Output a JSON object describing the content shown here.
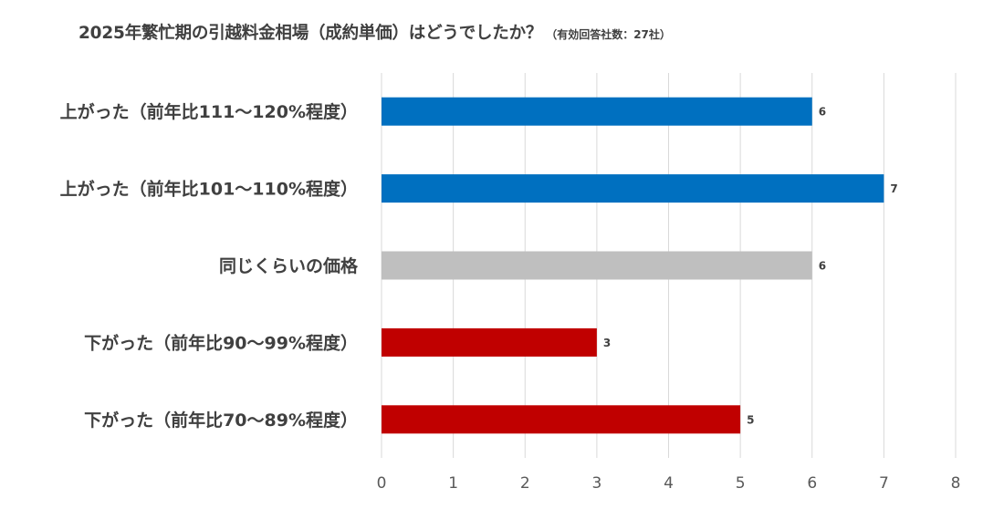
{
  "chart_data": {
    "type": "bar",
    "orientation": "horizontal",
    "title": "2025年繁忙期の引越料金相場（成約単価）はどうでしたか？",
    "subtitle": "（有効回答社数：27社）",
    "categories": [
      "上がった（前年比111～120%程度）",
      "上がった（前年比101～110%程度）",
      "同じくらいの価格",
      "下がった（前年比90～99%程度）",
      "下がった（前年比70～89%程度）"
    ],
    "values": [
      6,
      7,
      6,
      3,
      5
    ],
    "bar_colors": [
      "#0070C0",
      "#0070C0",
      "#BFBFBF",
      "#C00000",
      "#C00000"
    ],
    "xlim": [
      0,
      8
    ],
    "x_ticks": [
      0,
      1,
      2,
      3,
      4,
      5,
      6,
      7,
      8
    ],
    "grid": "vertical",
    "data_labels": true,
    "legend": "none",
    "xlabel": "",
    "ylabel": ""
  }
}
